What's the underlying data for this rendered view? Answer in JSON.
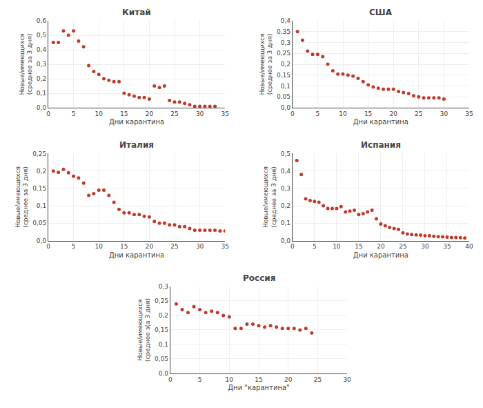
{
  "chart_data": [
    {
      "type": "scatter",
      "title": "Китай",
      "xlabel": "Дни карантина",
      "ylabel": "Новые/имеющихся\n(среднее за 3 дня)",
      "x": [
        1,
        2,
        3,
        4,
        5,
        6,
        7,
        8,
        9,
        10,
        11,
        12,
        13,
        14,
        15,
        16,
        17,
        18,
        19,
        20,
        21,
        22,
        23,
        24,
        25,
        26,
        27,
        28,
        29,
        30,
        31,
        32,
        33
      ],
      "values": [
        0.45,
        0.45,
        0.53,
        0.5,
        0.53,
        0.46,
        0.42,
        0.29,
        0.25,
        0.23,
        0.2,
        0.19,
        0.18,
        0.18,
        0.1,
        0.09,
        0.08,
        0.07,
        0.07,
        0.06,
        0.15,
        0.14,
        0.15,
        0.05,
        0.04,
        0.04,
        0.03,
        0.02,
        0.01,
        0.01,
        0.01,
        0.01,
        0.01
      ],
      "color": "#c0392b",
      "grid": true,
      "xlim": [
        0,
        35
      ],
      "xticks": [
        0,
        5,
        10,
        15,
        20,
        25,
        30,
        35
      ],
      "ylim": [
        0,
        0.6
      ],
      "yticks": [
        {
          "value": 0,
          "label": "0,0"
        },
        {
          "value": 0.1,
          "label": "0,1"
        },
        {
          "value": 0.2,
          "label": "0,2"
        },
        {
          "value": 0.3,
          "label": "0,3"
        },
        {
          "value": 0.4,
          "label": "0,4"
        },
        {
          "value": 0.5,
          "label": "0,5"
        },
        {
          "value": 0.6,
          "label": "0,6"
        }
      ]
    },
    {
      "type": "scatter",
      "title": "США",
      "xlabel": "Дни карантина",
      "ylabel": "Новые/имеющихся\n(среднее за 3 дня)",
      "x": [
        1,
        2,
        3,
        4,
        5,
        6,
        7,
        8,
        9,
        10,
        11,
        12,
        13,
        14,
        15,
        16,
        17,
        18,
        19,
        20,
        21,
        22,
        23,
        24,
        25,
        26,
        27,
        28,
        29,
        30
      ],
      "values": [
        0.35,
        0.31,
        0.26,
        0.245,
        0.245,
        0.235,
        0.2,
        0.17,
        0.155,
        0.155,
        0.15,
        0.145,
        0.135,
        0.12,
        0.105,
        0.095,
        0.09,
        0.085,
        0.085,
        0.085,
        0.075,
        0.07,
        0.065,
        0.055,
        0.05,
        0.045,
        0.045,
        0.045,
        0.045,
        0.04
      ],
      "color": "#c0392b",
      "grid": true,
      "xlim": [
        0,
        35
      ],
      "xticks": [
        0,
        5,
        10,
        15,
        20,
        25,
        30,
        35
      ],
      "ylim": [
        0,
        0.4
      ],
      "yticks": [
        {
          "value": 0,
          "label": "0,0"
        },
        {
          "value": 0.05,
          "label": "0,05"
        },
        {
          "value": 0.1,
          "label": "0,1"
        },
        {
          "value": 0.15,
          "label": "0,15"
        },
        {
          "value": 0.2,
          "label": "0,2"
        },
        {
          "value": 0.25,
          "label": "0,25"
        },
        {
          "value": 0.3,
          "label": "0,3"
        },
        {
          "value": 0.35,
          "label": "0,35"
        },
        {
          "value": 0.4,
          "label": "0,4"
        }
      ]
    },
    {
      "type": "scatter",
      "title": "Италия",
      "xlabel": "Дни карантина",
      "ylabel": "Новые/имеющихся\n(среднее за 3 дня)",
      "x": [
        1,
        2,
        3,
        4,
        5,
        6,
        7,
        8,
        9,
        10,
        11,
        12,
        13,
        14,
        15,
        16,
        17,
        18,
        19,
        20,
        21,
        22,
        23,
        24,
        25,
        26,
        27,
        28,
        29,
        30,
        31,
        32,
        33,
        34,
        35
      ],
      "values": [
        0.2,
        0.196,
        0.205,
        0.195,
        0.185,
        0.18,
        0.165,
        0.13,
        0.135,
        0.145,
        0.145,
        0.13,
        0.11,
        0.09,
        0.08,
        0.08,
        0.075,
        0.075,
        0.07,
        0.068,
        0.055,
        0.05,
        0.05,
        0.045,
        0.045,
        0.04,
        0.04,
        0.035,
        0.03,
        0.03,
        0.03,
        0.03,
        0.03,
        0.028,
        0.028
      ],
      "color": "#c0392b",
      "grid": true,
      "xlim": [
        0,
        35
      ],
      "xticks": [
        0,
        5,
        10,
        15,
        20,
        25,
        30,
        35
      ],
      "ylim": [
        0,
        0.25
      ],
      "yticks": [
        {
          "value": 0,
          "label": "0,0"
        },
        {
          "value": 0.05,
          "label": "0,05"
        },
        {
          "value": 0.1,
          "label": "0,1"
        },
        {
          "value": 0.15,
          "label": "0,15"
        },
        {
          "value": 0.2,
          "label": "0,2"
        },
        {
          "value": 0.25,
          "label": "0,25"
        }
      ]
    },
    {
      "type": "scatter",
      "title": "Испания",
      "xlabel": "Дни карантина",
      "ylabel": "Новые/имеющихся\n(среднее за 3 дня)",
      "x": [
        1,
        2,
        3,
        4,
        5,
        6,
        7,
        8,
        9,
        10,
        11,
        12,
        13,
        14,
        15,
        16,
        17,
        18,
        19,
        20,
        21,
        22,
        23,
        24,
        25,
        26,
        27,
        28,
        29,
        30,
        31,
        32,
        33,
        34,
        35,
        36,
        37,
        38,
        39
      ],
      "values": [
        0.46,
        0.38,
        0.24,
        0.23,
        0.225,
        0.22,
        0.2,
        0.185,
        0.185,
        0.185,
        0.195,
        0.165,
        0.17,
        0.175,
        0.15,
        0.155,
        0.165,
        0.175,
        0.125,
        0.095,
        0.085,
        0.075,
        0.07,
        0.065,
        0.045,
        0.038,
        0.035,
        0.033,
        0.032,
        0.028,
        0.028,
        0.025,
        0.023,
        0.022,
        0.02,
        0.018,
        0.018,
        0.017,
        0.015
      ],
      "color": "#c0392b",
      "grid": true,
      "xlim": [
        0,
        40
      ],
      "xticks": [
        0,
        5,
        10,
        15,
        20,
        25,
        30,
        35,
        40
      ],
      "ylim": [
        0,
        0.5
      ],
      "yticks": [
        {
          "value": 0,
          "label": "0,0"
        },
        {
          "value": 0.1,
          "label": "0,1"
        },
        {
          "value": 0.2,
          "label": "0,2"
        },
        {
          "value": 0.3,
          "label": "0,3"
        },
        {
          "value": 0.4,
          "label": "0,4"
        },
        {
          "value": 0.5,
          "label": "0,5"
        }
      ]
    },
    {
      "type": "scatter",
      "title": "Россия",
      "xlabel": "Дни \"карантина\"",
      "ylabel": "Новые/имеющихся\n(среднее з(а 3 дня)",
      "x": [
        1,
        2,
        3,
        4,
        5,
        6,
        7,
        8,
        9,
        10,
        11,
        12,
        13,
        14,
        15,
        16,
        17,
        18,
        19,
        20,
        21,
        22,
        23,
        24
      ],
      "values": [
        0.24,
        0.22,
        0.21,
        0.23,
        0.22,
        0.21,
        0.215,
        0.21,
        0.2,
        0.195,
        0.155,
        0.155,
        0.17,
        0.17,
        0.165,
        0.16,
        0.165,
        0.16,
        0.155,
        0.155,
        0.155,
        0.15,
        0.155,
        0.14
      ],
      "color": "#c0392b",
      "grid": true,
      "xlim": [
        0,
        30
      ],
      "xticks": [
        0,
        5,
        10,
        15,
        20,
        25,
        30
      ],
      "ylim": [
        0,
        0.3
      ],
      "yticks": [
        {
          "value": 0,
          "label": "0,0"
        },
        {
          "value": 0.05,
          "label": "0,05"
        },
        {
          "value": 0.1,
          "label": "0,1"
        },
        {
          "value": 0.15,
          "label": "0,15"
        },
        {
          "value": 0.2,
          "label": "0,2"
        },
        {
          "value": 0.25,
          "label": "0,25"
        },
        {
          "value": 0.3,
          "label": "0,3"
        }
      ]
    }
  ]
}
